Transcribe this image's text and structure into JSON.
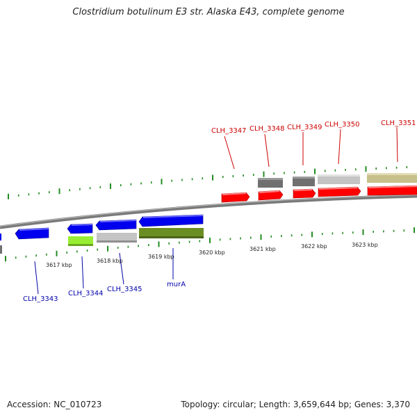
{
  "title": "Clostridium botulinum E3 str. Alaska E43, complete genome",
  "accession": "Accession: NC_010723",
  "stats": "Topology: circular; Length: 3,659,644 bp; Genes: 3,370",
  "colors": {
    "forward_label": "#cc0000",
    "reverse_label": "#0000aa",
    "backbone": "#888888",
    "tick_mark": "#228b22",
    "cds_red": "#ff0000",
    "cds_blue": "#0000ee",
    "dark_gray": "#707070",
    "light_gray": "#c0c0c0",
    "khaki": "#c8c08a",
    "lime": "#99ee33",
    "olive": "#6b8e23"
  },
  "position_ticks": [
    "3617 kbp",
    "3618 kbp",
    "3619 kbp",
    "3620 kbp",
    "3621 kbp",
    "3622 kbp",
    "3623 kbp"
  ],
  "forward_labels": [
    "CLH_3347",
    "CLH_3348",
    "CLH_3349",
    "CLH_3350",
    "CLH_3351"
  ],
  "reverse_labels": [
    "CLH_3343",
    "CLH_3344",
    "CLH_3345",
    "murA"
  ]
}
